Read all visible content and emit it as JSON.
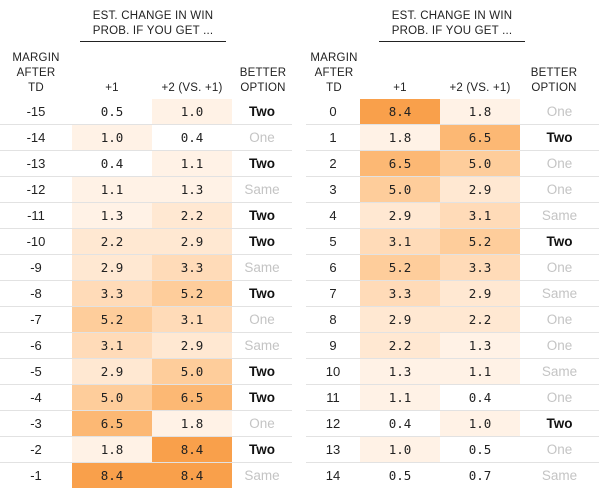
{
  "headers": {
    "group": "EST. CHANGE IN WIN PROB. IF YOU GET ...",
    "margin": "MARGIN AFTER TD",
    "plus1": "+1",
    "plus2": "+2 (VS. +1)",
    "better": "BETTER OPTION"
  },
  "colors": {
    "text": "#222222",
    "muted_option": "#c4c4c4",
    "scale": [
      "#ffffff",
      "#fff2e6",
      "#ffe8d2",
      "#ffdbb8",
      "#fecd9b",
      "#fcb874",
      "#f9a04b"
    ]
  },
  "left_rows": [
    {
      "margin": "-15",
      "plus1": "0.5",
      "plus2": "1.0",
      "better": "Two"
    },
    {
      "margin": "-14",
      "plus1": "1.0",
      "plus2": "0.4",
      "better": "One"
    },
    {
      "margin": "-13",
      "plus1": "0.4",
      "plus2": "1.1",
      "better": "Two"
    },
    {
      "margin": "-12",
      "plus1": "1.1",
      "plus2": "1.3",
      "better": "Same"
    },
    {
      "margin": "-11",
      "plus1": "1.3",
      "plus2": "2.2",
      "better": "Two"
    },
    {
      "margin": "-10",
      "plus1": "2.2",
      "plus2": "2.9",
      "better": "Two"
    },
    {
      "margin": "-9",
      "plus1": "2.9",
      "plus2": "3.3",
      "better": "Same"
    },
    {
      "margin": "-8",
      "plus1": "3.3",
      "plus2": "5.2",
      "better": "Two"
    },
    {
      "margin": "-7",
      "plus1": "5.2",
      "plus2": "3.1",
      "better": "One"
    },
    {
      "margin": "-6",
      "plus1": "3.1",
      "plus2": "2.9",
      "better": "Same"
    },
    {
      "margin": "-5",
      "plus1": "2.9",
      "plus2": "5.0",
      "better": "Two"
    },
    {
      "margin": "-4",
      "plus1": "5.0",
      "plus2": "6.5",
      "better": "Two"
    },
    {
      "margin": "-3",
      "plus1": "6.5",
      "plus2": "1.8",
      "better": "One"
    },
    {
      "margin": "-2",
      "plus1": "1.8",
      "plus2": "8.4",
      "better": "Two"
    },
    {
      "margin": "-1",
      "plus1": "8.4",
      "plus2": "8.4",
      "better": "Same"
    }
  ],
  "right_rows": [
    {
      "margin": "0",
      "plus1": "8.4",
      "plus2": "1.8",
      "better": "One"
    },
    {
      "margin": "1",
      "plus1": "1.8",
      "plus2": "6.5",
      "better": "Two"
    },
    {
      "margin": "2",
      "plus1": "6.5",
      "plus2": "5.0",
      "better": "One"
    },
    {
      "margin": "3",
      "plus1": "5.0",
      "plus2": "2.9",
      "better": "One"
    },
    {
      "margin": "4",
      "plus1": "2.9",
      "plus2": "3.1",
      "better": "Same"
    },
    {
      "margin": "5",
      "plus1": "3.1",
      "plus2": "5.2",
      "better": "Two"
    },
    {
      "margin": "6",
      "plus1": "5.2",
      "plus2": "3.3",
      "better": "One"
    },
    {
      "margin": "7",
      "plus1": "3.3",
      "plus2": "2.9",
      "better": "Same"
    },
    {
      "margin": "8",
      "plus1": "2.9",
      "plus2": "2.2",
      "better": "One"
    },
    {
      "margin": "9",
      "plus1": "2.2",
      "plus2": "1.3",
      "better": "One"
    },
    {
      "margin": "10",
      "plus1": "1.3",
      "plus2": "1.1",
      "better": "Same"
    },
    {
      "margin": "11",
      "plus1": "1.1",
      "plus2": "0.4",
      "better": "One"
    },
    {
      "margin": "12",
      "plus1": "0.4",
      "plus2": "1.0",
      "better": "Two"
    },
    {
      "margin": "13",
      "plus1": "1.0",
      "plus2": "0.5",
      "better": "One"
    },
    {
      "margin": "14",
      "plus1": "0.5",
      "plus2": "0.7",
      "better": "Same"
    }
  ]
}
